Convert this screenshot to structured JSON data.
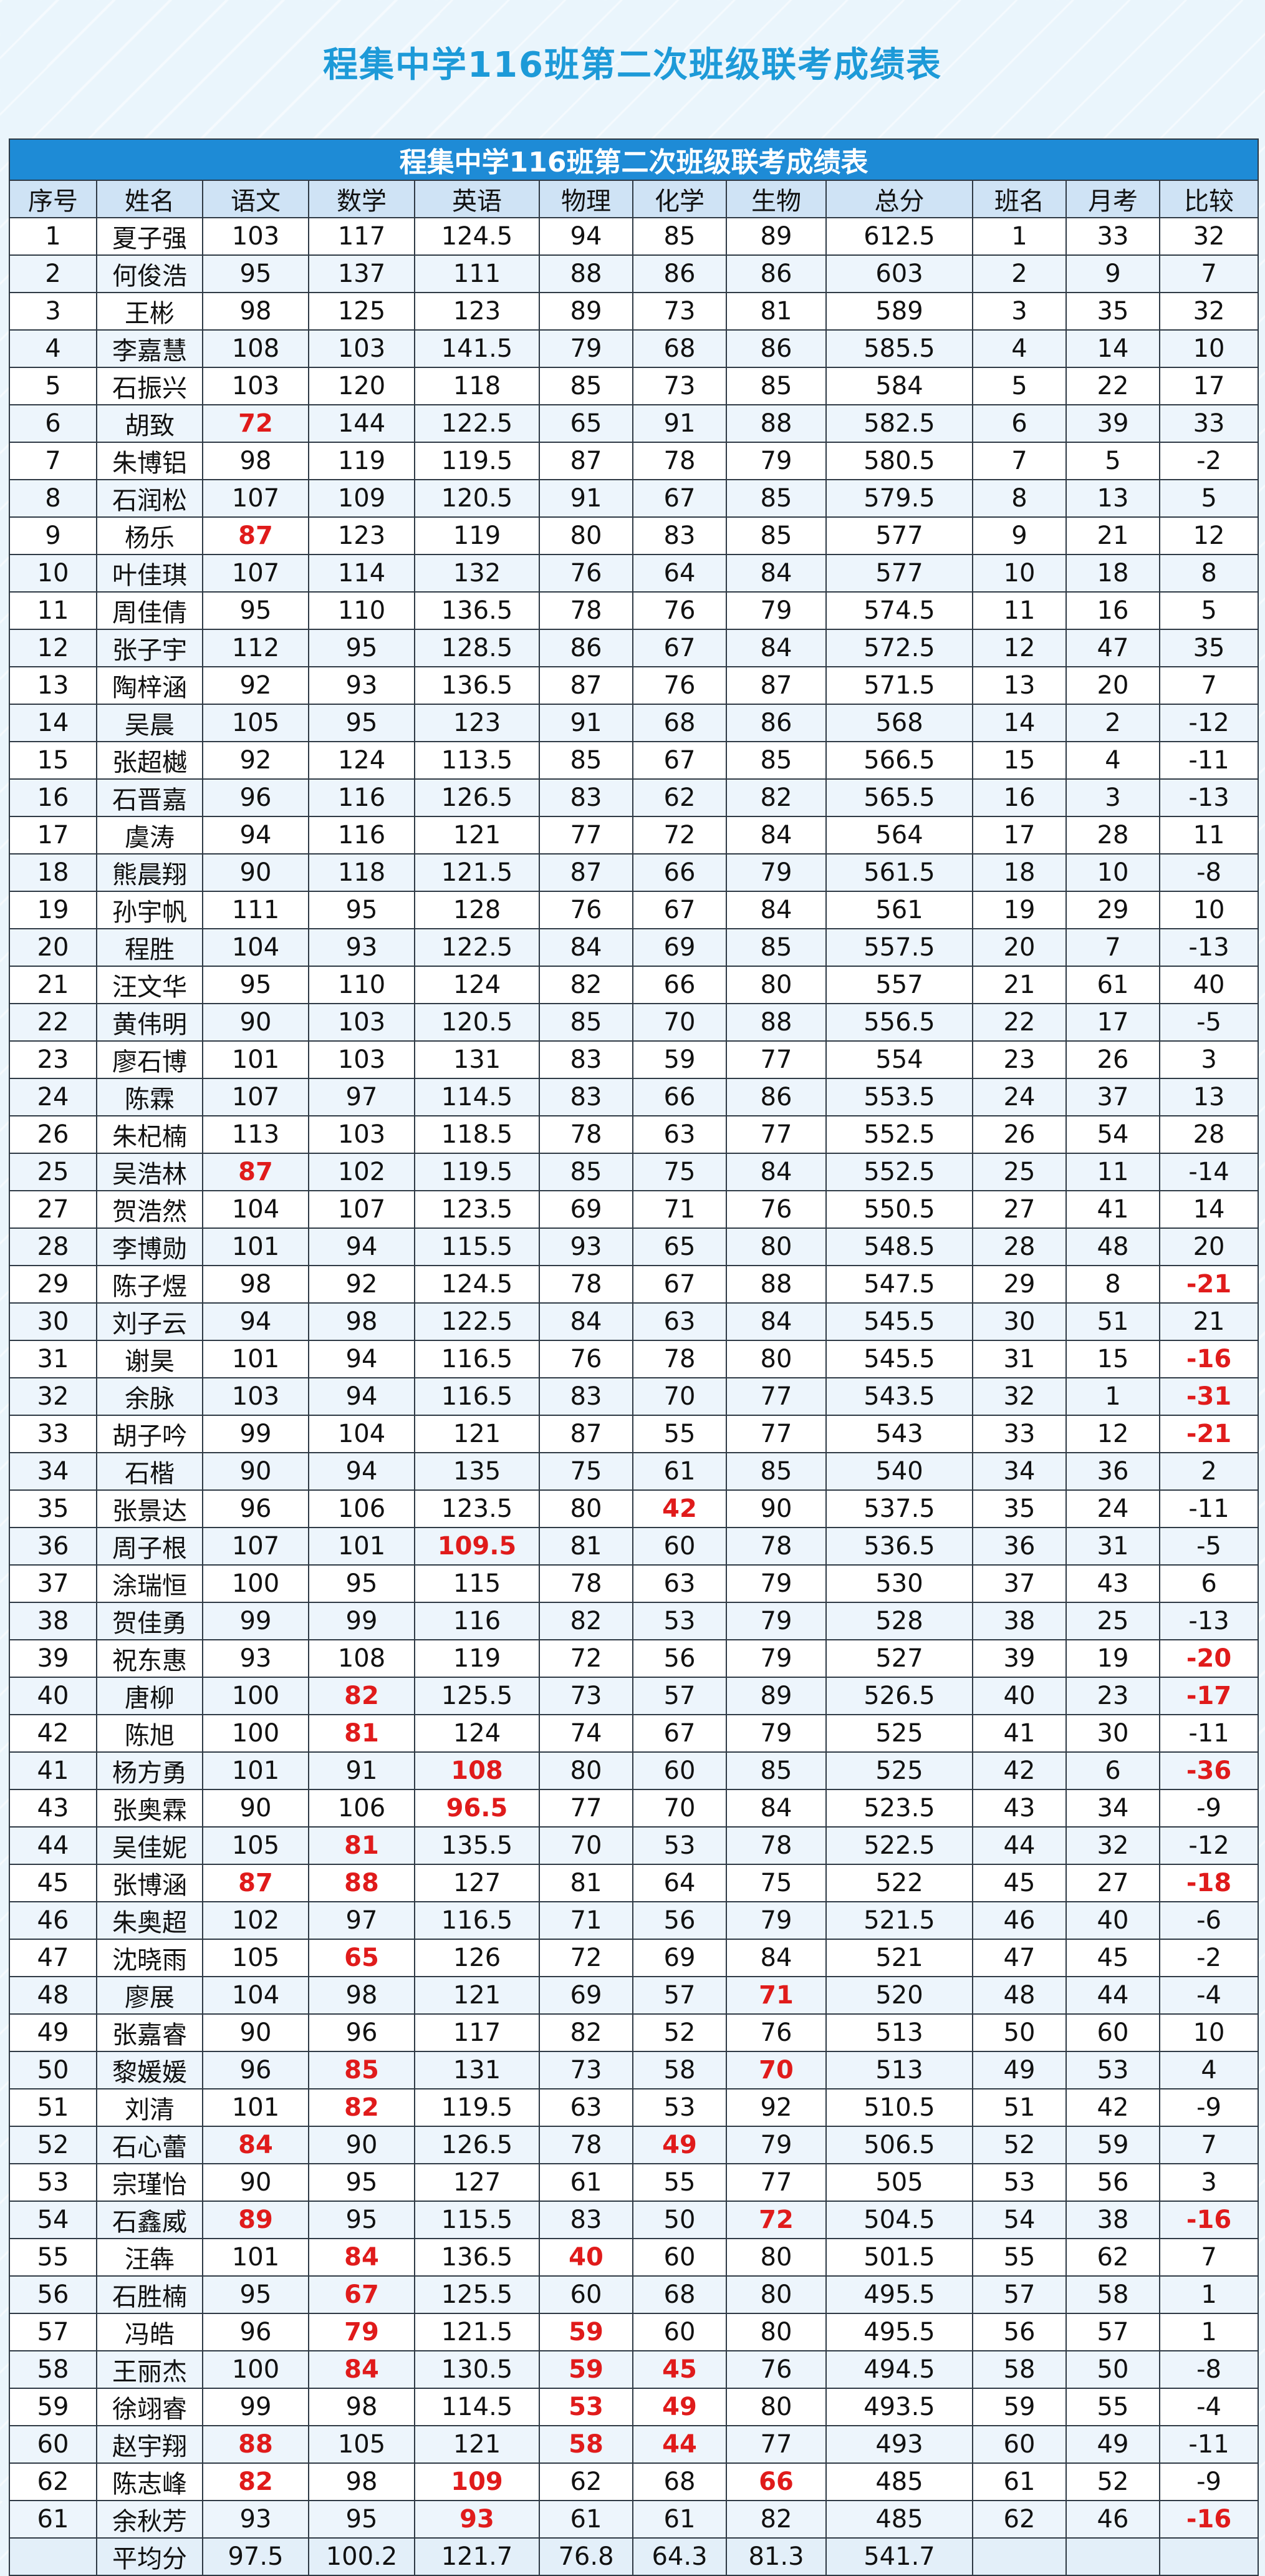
{
  "header": {
    "title": "程集中学116班第二次班级联考成绩表"
  },
  "table": {
    "caption": "程集中学116班第二次班级联考成绩表",
    "columns": [
      "序号",
      "姓名",
      "语文",
      "数学",
      "英语",
      "物理",
      "化学",
      "生物",
      "总分",
      "班名",
      "月考",
      "比较"
    ],
    "rows": [
      {
        "c": [
          "1",
          "夏子强",
          "103",
          "117",
          "124.5",
          "94",
          "85",
          "89",
          "612.5",
          "1",
          "33",
          "32"
        ],
        "red": []
      },
      {
        "c": [
          "2",
          "何俊浩",
          "95",
          "137",
          "111",
          "88",
          "86",
          "86",
          "603",
          "2",
          "9",
          "7"
        ],
        "red": []
      },
      {
        "c": [
          "3",
          "王彬",
          "98",
          "125",
          "123",
          "89",
          "73",
          "81",
          "589",
          "3",
          "35",
          "32"
        ],
        "red": []
      },
      {
        "c": [
          "4",
          "李嘉慧",
          "108",
          "103",
          "141.5",
          "79",
          "68",
          "86",
          "585.5",
          "4",
          "14",
          "10"
        ],
        "red": []
      },
      {
        "c": [
          "5",
          "石振兴",
          "103",
          "120",
          "118",
          "85",
          "73",
          "85",
          "584",
          "5",
          "22",
          "17"
        ],
        "red": []
      },
      {
        "c": [
          "6",
          "胡致",
          "72",
          "144",
          "122.5",
          "65",
          "91",
          "88",
          "582.5",
          "6",
          "39",
          "33"
        ],
        "red": [
          2
        ]
      },
      {
        "c": [
          "7",
          "朱博铝",
          "98",
          "119",
          "119.5",
          "87",
          "78",
          "79",
          "580.5",
          "7",
          "5",
          "-2"
        ],
        "red": []
      },
      {
        "c": [
          "8",
          "石润松",
          "107",
          "109",
          "120.5",
          "91",
          "67",
          "85",
          "579.5",
          "8",
          "13",
          "5"
        ],
        "red": []
      },
      {
        "c": [
          "9",
          "杨乐",
          "87",
          "123",
          "119",
          "80",
          "83",
          "85",
          "577",
          "9",
          "21",
          "12"
        ],
        "red": [
          2
        ]
      },
      {
        "c": [
          "10",
          "叶佳琪",
          "107",
          "114",
          "132",
          "76",
          "64",
          "84",
          "577",
          "10",
          "18",
          "8"
        ],
        "red": []
      },
      {
        "c": [
          "11",
          "周佳倩",
          "95",
          "110",
          "136.5",
          "78",
          "76",
          "79",
          "574.5",
          "11",
          "16",
          "5"
        ],
        "red": []
      },
      {
        "c": [
          "12",
          "张子宇",
          "112",
          "95",
          "128.5",
          "86",
          "67",
          "84",
          "572.5",
          "12",
          "47",
          "35"
        ],
        "red": []
      },
      {
        "c": [
          "13",
          "陶梓涵",
          "92",
          "93",
          "136.5",
          "87",
          "76",
          "87",
          "571.5",
          "13",
          "20",
          "7"
        ],
        "red": []
      },
      {
        "c": [
          "14",
          "吴晨",
          "105",
          "95",
          "123",
          "91",
          "68",
          "86",
          "568",
          "14",
          "2",
          "-12"
        ],
        "red": []
      },
      {
        "c": [
          "15",
          "张超樾",
          "92",
          "124",
          "113.5",
          "85",
          "67",
          "85",
          "566.5",
          "15",
          "4",
          "-11"
        ],
        "red": []
      },
      {
        "c": [
          "16",
          "石晋嘉",
          "96",
          "116",
          "126.5",
          "83",
          "62",
          "82",
          "565.5",
          "16",
          "3",
          "-13"
        ],
        "red": []
      },
      {
        "c": [
          "17",
          "虞涛",
          "94",
          "116",
          "121",
          "77",
          "72",
          "84",
          "564",
          "17",
          "28",
          "11"
        ],
        "red": []
      },
      {
        "c": [
          "18",
          "熊晨翔",
          "90",
          "118",
          "121.5",
          "87",
          "66",
          "79",
          "561.5",
          "18",
          "10",
          "-8"
        ],
        "red": []
      },
      {
        "c": [
          "19",
          "孙宇帆",
          "111",
          "95",
          "128",
          "76",
          "67",
          "84",
          "561",
          "19",
          "29",
          "10"
        ],
        "red": []
      },
      {
        "c": [
          "20",
          "程胜",
          "104",
          "93",
          "122.5",
          "84",
          "69",
          "85",
          "557.5",
          "20",
          "7",
          "-13"
        ],
        "red": []
      },
      {
        "c": [
          "21",
          "汪文华",
          "95",
          "110",
          "124",
          "82",
          "66",
          "80",
          "557",
          "21",
          "61",
          "40"
        ],
        "red": []
      },
      {
        "c": [
          "22",
          "黄伟明",
          "90",
          "103",
          "120.5",
          "85",
          "70",
          "88",
          "556.5",
          "22",
          "17",
          "-5"
        ],
        "red": []
      },
      {
        "c": [
          "23",
          "廖石博",
          "101",
          "103",
          "131",
          "83",
          "59",
          "77",
          "554",
          "23",
          "26",
          "3"
        ],
        "red": []
      },
      {
        "c": [
          "24",
          "陈霖",
          "107",
          "97",
          "114.5",
          "83",
          "66",
          "86",
          "553.5",
          "24",
          "37",
          "13"
        ],
        "red": []
      },
      {
        "c": [
          "26",
          "朱杞楠",
          "113",
          "103",
          "118.5",
          "78",
          "63",
          "77",
          "552.5",
          "26",
          "54",
          "28"
        ],
        "red": []
      },
      {
        "c": [
          "25",
          "吴浩林",
          "87",
          "102",
          "119.5",
          "85",
          "75",
          "84",
          "552.5",
          "25",
          "11",
          "-14"
        ],
        "red": [
          2
        ]
      },
      {
        "c": [
          "27",
          "贺浩然",
          "104",
          "107",
          "123.5",
          "69",
          "71",
          "76",
          "550.5",
          "27",
          "41",
          "14"
        ],
        "red": []
      },
      {
        "c": [
          "28",
          "李博勋",
          "101",
          "94",
          "115.5",
          "93",
          "65",
          "80",
          "548.5",
          "28",
          "48",
          "20"
        ],
        "red": []
      },
      {
        "c": [
          "29",
          "陈子煜",
          "98",
          "92",
          "124.5",
          "78",
          "67",
          "88",
          "547.5",
          "29",
          "8",
          "-21"
        ],
        "red": [
          11
        ]
      },
      {
        "c": [
          "30",
          "刘子云",
          "94",
          "98",
          "122.5",
          "84",
          "63",
          "84",
          "545.5",
          "30",
          "51",
          "21"
        ],
        "red": []
      },
      {
        "c": [
          "31",
          "谢昊",
          "101",
          "94",
          "116.5",
          "76",
          "78",
          "80",
          "545.5",
          "31",
          "15",
          "-16"
        ],
        "red": [
          11
        ]
      },
      {
        "c": [
          "32",
          "余脉",
          "103",
          "94",
          "116.5",
          "83",
          "70",
          "77",
          "543.5",
          "32",
          "1",
          "-31"
        ],
        "red": [
          11
        ]
      },
      {
        "c": [
          "33",
          "胡子吟",
          "99",
          "104",
          "121",
          "87",
          "55",
          "77",
          "543",
          "33",
          "12",
          "-21"
        ],
        "red": [
          11
        ]
      },
      {
        "c": [
          "34",
          "石楷",
          "90",
          "94",
          "135",
          "75",
          "61",
          "85",
          "540",
          "34",
          "36",
          "2"
        ],
        "red": []
      },
      {
        "c": [
          "35",
          "张景达",
          "96",
          "106",
          "123.5",
          "80",
          "42",
          "90",
          "537.5",
          "35",
          "24",
          "-11"
        ],
        "red": [
          6
        ]
      },
      {
        "c": [
          "36",
          "周子根",
          "107",
          "101",
          "109.5",
          "81",
          "60",
          "78",
          "536.5",
          "36",
          "31",
          "-5"
        ],
        "red": [
          4
        ]
      },
      {
        "c": [
          "37",
          "涂瑞恒",
          "100",
          "95",
          "115",
          "78",
          "63",
          "79",
          "530",
          "37",
          "43",
          "6"
        ],
        "red": []
      },
      {
        "c": [
          "38",
          "贺佳勇",
          "99",
          "99",
          "116",
          "82",
          "53",
          "79",
          "528",
          "38",
          "25",
          "-13"
        ],
        "red": []
      },
      {
        "c": [
          "39",
          "祝东惠",
          "93",
          "108",
          "119",
          "72",
          "56",
          "79",
          "527",
          "39",
          "19",
          "-20"
        ],
        "red": [
          11
        ]
      },
      {
        "c": [
          "40",
          "唐柳",
          "100",
          "82",
          "125.5",
          "73",
          "57",
          "89",
          "526.5",
          "40",
          "23",
          "-17"
        ],
        "red": [
          3,
          11
        ]
      },
      {
        "c": [
          "42",
          "陈旭",
          "100",
          "81",
          "124",
          "74",
          "67",
          "79",
          "525",
          "41",
          "30",
          "-11"
        ],
        "red": [
          3
        ]
      },
      {
        "c": [
          "41",
          "杨方勇",
          "101",
          "91",
          "108",
          "80",
          "60",
          "85",
          "525",
          "42",
          "6",
          "-36"
        ],
        "red": [
          4,
          11
        ]
      },
      {
        "c": [
          "43",
          "张奥霖",
          "90",
          "106",
          "96.5",
          "77",
          "70",
          "84",
          "523.5",
          "43",
          "34",
          "-9"
        ],
        "red": [
          4
        ]
      },
      {
        "c": [
          "44",
          "吴佳妮",
          "105",
          "81",
          "135.5",
          "70",
          "53",
          "78",
          "522.5",
          "44",
          "32",
          "-12"
        ],
        "red": [
          3
        ]
      },
      {
        "c": [
          "45",
          "张博涵",
          "87",
          "88",
          "127",
          "81",
          "64",
          "75",
          "522",
          "45",
          "27",
          "-18"
        ],
        "red": [
          2,
          3,
          11
        ]
      },
      {
        "c": [
          "46",
          "朱奥超",
          "102",
          "97",
          "116.5",
          "71",
          "56",
          "79",
          "521.5",
          "46",
          "40",
          "-6"
        ],
        "red": []
      },
      {
        "c": [
          "47",
          "沈晓雨",
          "105",
          "65",
          "126",
          "72",
          "69",
          "84",
          "521",
          "47",
          "45",
          "-2"
        ],
        "red": [
          3
        ]
      },
      {
        "c": [
          "48",
          "廖展",
          "104",
          "98",
          "121",
          "69",
          "57",
          "71",
          "520",
          "48",
          "44",
          "-4"
        ],
        "red": [
          7
        ]
      },
      {
        "c": [
          "49",
          "张嘉睿",
          "90",
          "96",
          "117",
          "82",
          "52",
          "76",
          "513",
          "50",
          "60",
          "10"
        ],
        "red": []
      },
      {
        "c": [
          "50",
          "黎媛媛",
          "96",
          "85",
          "131",
          "73",
          "58",
          "70",
          "513",
          "49",
          "53",
          "4"
        ],
        "red": [
          3,
          7
        ]
      },
      {
        "c": [
          "51",
          "刘清",
          "101",
          "82",
          "119.5",
          "63",
          "53",
          "92",
          "510.5",
          "51",
          "42",
          "-9"
        ],
        "red": [
          3
        ]
      },
      {
        "c": [
          "52",
          "石心蕾",
          "84",
          "90",
          "126.5",
          "78",
          "49",
          "79",
          "506.5",
          "52",
          "59",
          "7"
        ],
        "red": [
          2,
          6
        ]
      },
      {
        "c": [
          "53",
          "宗瑾怡",
          "90",
          "95",
          "127",
          "61",
          "55",
          "77",
          "505",
          "53",
          "56",
          "3"
        ],
        "red": []
      },
      {
        "c": [
          "54",
          "石鑫威",
          "89",
          "95",
          "115.5",
          "83",
          "50",
          "72",
          "504.5",
          "54",
          "38",
          "-16"
        ],
        "red": [
          2,
          7,
          11
        ]
      },
      {
        "c": [
          "55",
          "汪犇",
          "101",
          "84",
          "136.5",
          "40",
          "60",
          "80",
          "501.5",
          "55",
          "62",
          "7"
        ],
        "red": [
          3,
          5
        ]
      },
      {
        "c": [
          "56",
          "石胜楠",
          "95",
          "67",
          "125.5",
          "60",
          "68",
          "80",
          "495.5",
          "57",
          "58",
          "1"
        ],
        "red": [
          3
        ]
      },
      {
        "c": [
          "57",
          "冯皓",
          "96",
          "79",
          "121.5",
          "59",
          "60",
          "80",
          "495.5",
          "56",
          "57",
          "1"
        ],
        "red": [
          3,
          5
        ]
      },
      {
        "c": [
          "58",
          "王丽杰",
          "100",
          "84",
          "130.5",
          "59",
          "45",
          "76",
          "494.5",
          "58",
          "50",
          "-8"
        ],
        "red": [
          3,
          5,
          6
        ]
      },
      {
        "c": [
          "59",
          "徐翊睿",
          "99",
          "98",
          "114.5",
          "53",
          "49",
          "80",
          "493.5",
          "59",
          "55",
          "-4"
        ],
        "red": [
          5,
          6
        ]
      },
      {
        "c": [
          "60",
          "赵宇翔",
          "88",
          "105",
          "121",
          "58",
          "44",
          "77",
          "493",
          "60",
          "49",
          "-11"
        ],
        "red": [
          2,
          5,
          6
        ]
      },
      {
        "c": [
          "62",
          "陈志峰",
          "82",
          "98",
          "109",
          "62",
          "68",
          "66",
          "485",
          "61",
          "52",
          "-9"
        ],
        "red": [
          2,
          4,
          7
        ]
      },
      {
        "c": [
          "61",
          "余秋芳",
          "93",
          "95",
          "93",
          "61",
          "61",
          "82",
          "485",
          "62",
          "46",
          "-16"
        ],
        "red": [
          4,
          11
        ]
      }
    ],
    "average": {
      "label": "平均分",
      "values": [
        "97.5",
        "100.2",
        "121.7",
        "76.8",
        "64.3",
        "81.3",
        "541.7"
      ]
    }
  }
}
